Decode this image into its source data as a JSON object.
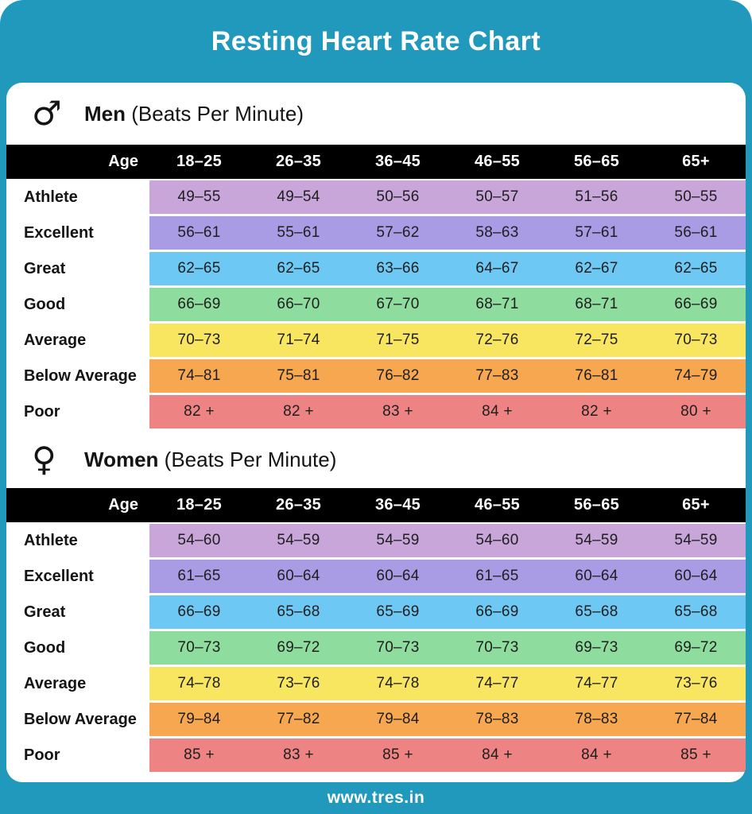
{
  "title": "Resting Heart Rate Chart",
  "footer": {
    "url": "www.tres.in"
  },
  "colors": {
    "teal": "#2199BC",
    "header_black": "#000000",
    "athlete": "#C9A6DA",
    "excellent": "#A99CE4",
    "great": "#6EC8F4",
    "good": "#8FDC9F",
    "average": "#F8E560",
    "below_average": "#F7A750",
    "poor": "#EE8383"
  },
  "chart_data": [
    {
      "type": "table",
      "title": "Men",
      "subtitle": "(Beats Per Minute)",
      "gender_symbol": "♂",
      "icon": "male-icon",
      "age_header": "Age",
      "age_groups": [
        "18–25",
        "26–35",
        "36–45",
        "46–55",
        "56–65",
        "65+"
      ],
      "rows": [
        {
          "label": "Athlete",
          "color": "#C9A6DA",
          "values": [
            "49–55",
            "49–54",
            "50–56",
            "50–57",
            "51–56",
            "50–55"
          ]
        },
        {
          "label": "Excellent",
          "color": "#A99CE4",
          "values": [
            "56–61",
            "55–61",
            "57–62",
            "58–63",
            "57–61",
            "56–61"
          ]
        },
        {
          "label": "Great",
          "color": "#6EC8F4",
          "values": [
            "62–65",
            "62–65",
            "63–66",
            "64–67",
            "62–67",
            "62–65"
          ]
        },
        {
          "label": "Good",
          "color": "#8FDC9F",
          "values": [
            "66–69",
            "66–70",
            "67–70",
            "68–71",
            "68–71",
            "66–69"
          ]
        },
        {
          "label": "Average",
          "color": "#F8E560",
          "values": [
            "70–73",
            "71–74",
            "71–75",
            "72–76",
            "72–75",
            "70–73"
          ]
        },
        {
          "label": "Below Average",
          "color": "#F7A750",
          "values": [
            "74–81",
            "75–81",
            "76–82",
            "77–83",
            "76–81",
            "74–79"
          ]
        },
        {
          "label": "Poor",
          "color": "#EE8383",
          "values": [
            "82 +",
            "82 +",
            "83 +",
            "84 +",
            "82 +",
            "80 +"
          ]
        }
      ]
    },
    {
      "type": "table",
      "title": "Women",
      "subtitle": "(Beats Per Minute)",
      "gender_symbol": "♀",
      "icon": "female-icon",
      "age_header": "Age",
      "age_groups": [
        "18–25",
        "26–35",
        "36–45",
        "46–55",
        "56–65",
        "65+"
      ],
      "rows": [
        {
          "label": "Athlete",
          "color": "#C9A6DA",
          "values": [
            "54–60",
            "54–59",
            "54–59",
            "54–60",
            "54–59",
            "54–59"
          ]
        },
        {
          "label": "Excellent",
          "color": "#A99CE4",
          "values": [
            "61–65",
            "60–64",
            "60–64",
            "61–65",
            "60–64",
            "60–64"
          ]
        },
        {
          "label": "Great",
          "color": "#6EC8F4",
          "values": [
            "66–69",
            "65–68",
            "65–69",
            "66–69",
            "65–68",
            "65–68"
          ]
        },
        {
          "label": "Good",
          "color": "#8FDC9F",
          "values": [
            "70–73",
            "69–72",
            "70–73",
            "70–73",
            "69–73",
            "69–72"
          ]
        },
        {
          "label": "Average",
          "color": "#F8E560",
          "values": [
            "74–78",
            "73–76",
            "74–78",
            "74–77",
            "74–77",
            "73–76"
          ]
        },
        {
          "label": "Below Average",
          "color": "#F7A750",
          "values": [
            "79–84",
            "77–82",
            "79–84",
            "78–83",
            "78–83",
            "77–84"
          ]
        },
        {
          "label": "Poor",
          "color": "#EE8383",
          "values": [
            "85 +",
            "83 +",
            "85 +",
            "84 +",
            "84 +",
            "85 +"
          ]
        }
      ]
    }
  ]
}
